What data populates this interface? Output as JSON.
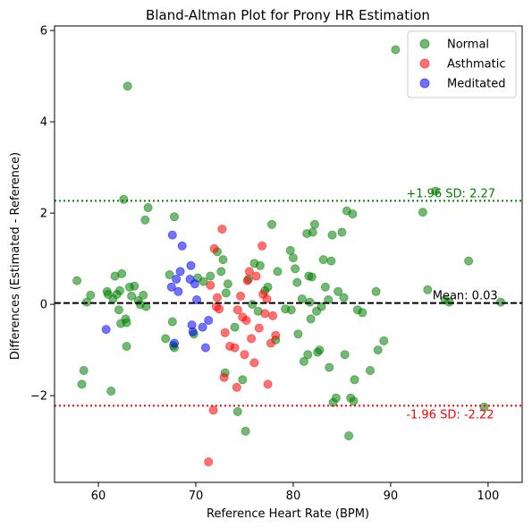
{
  "chart_data": {
    "type": "scatter",
    "title": "Bland-Altman Plot for Prony HR Estimation",
    "xlabel": "Reference Heart Rate (BPM)",
    "ylabel": "Differences (Estimated - Reference)",
    "xlim": [
      55.5,
      103.5
    ],
    "ylim": [
      -3.9,
      6.1
    ],
    "xticks": [
      60,
      70,
      80,
      90,
      100
    ],
    "yticks": [
      -2,
      0,
      2,
      4,
      6
    ],
    "xtick_labels": [
      "60",
      "70",
      "80",
      "90",
      "100"
    ],
    "ytick_labels": [
      "−2",
      "0",
      "2",
      "4",
      "6"
    ],
    "grid": false,
    "legend_position": "top-right",
    "series": [
      {
        "name": "Normal",
        "color": "#008000",
        "alpha": 0.55,
        "points": [
          [
            57.8,
            0.52
          ],
          [
            58.3,
            -1.75
          ],
          [
            58.5,
            -1.45
          ],
          [
            58.8,
            0.05
          ],
          [
            59.2,
            0.2
          ],
          [
            60.9,
            0.28
          ],
          [
            61.0,
            0.22
          ],
          [
            61.3,
            -1.9
          ],
          [
            61.5,
            0.12
          ],
          [
            61.7,
            0.62
          ],
          [
            61.9,
            0.22
          ],
          [
            62.1,
            -0.12
          ],
          [
            62.2,
            0.3
          ],
          [
            62.3,
            -0.42
          ],
          [
            62.4,
            0.67
          ],
          [
            62.6,
            2.3
          ],
          [
            62.8,
            -0.32
          ],
          [
            62.9,
            -0.4
          ],
          [
            62.9,
            -0.92
          ],
          [
            63.0,
            4.78
          ],
          [
            63.2,
            0.38
          ],
          [
            63.4,
            0.18
          ],
          [
            63.7,
            0.4
          ],
          [
            64.1,
            0.08
          ],
          [
            64.3,
            0.0
          ],
          [
            64.6,
            0.2
          ],
          [
            64.8,
            1.85
          ],
          [
            64.9,
            -0.05
          ],
          [
            65.1,
            2.12
          ],
          [
            66.9,
            -0.75
          ],
          [
            67.3,
            0.65
          ],
          [
            67.6,
            -0.38
          ],
          [
            67.7,
            -0.9
          ],
          [
            67.8,
            -0.95
          ],
          [
            67.8,
            1.92
          ],
          [
            69.8,
            -0.65
          ],
          [
            70.2,
            0.58
          ],
          [
            70.8,
            0.5
          ],
          [
            71.5,
            0.62
          ],
          [
            72.2,
            1.15
          ],
          [
            72.6,
            0.72
          ],
          [
            72.8,
            0.98
          ],
          [
            73.0,
            -1.5
          ],
          [
            73.1,
            0.25
          ],
          [
            73.3,
            0.45
          ],
          [
            74.0,
            -0.5
          ],
          [
            74.3,
            -2.35
          ],
          [
            74.8,
            -1.65
          ],
          [
            75.1,
            -2.78
          ],
          [
            75.4,
            0.55
          ],
          [
            75.8,
            0.0
          ],
          [
            76.0,
            0.9
          ],
          [
            76.4,
            -0.15
          ],
          [
            76.6,
            0.85
          ],
          [
            77.1,
            0.3
          ],
          [
            77.4,
            0.38
          ],
          [
            77.8,
            1.75
          ],
          [
            78.2,
            -0.78
          ],
          [
            78.4,
            0.72
          ],
          [
            79.2,
            -0.1
          ],
          [
            79.7,
            1.18
          ],
          [
            79.8,
            -0.12
          ],
          [
            80.0,
            1.02
          ],
          [
            80.2,
            0.78
          ],
          [
            80.4,
            0.48
          ],
          [
            80.5,
            -0.65
          ],
          [
            80.9,
            0.12
          ],
          [
            81.1,
            -1.25
          ],
          [
            81.4,
            1.55
          ],
          [
            81.5,
            -1.1
          ],
          [
            81.6,
            0.62
          ],
          [
            81.7,
            0.05
          ],
          [
            81.8,
            -0.32
          ],
          [
            81.9,
            0.6
          ],
          [
            82.0,
            1.58
          ],
          [
            82.2,
            1.75
          ],
          [
            82.4,
            -0.15
          ],
          [
            82.5,
            -1.05
          ],
          [
            82.7,
            -1.0
          ],
          [
            82.9,
            -0.05
          ],
          [
            83.1,
            0.98
          ],
          [
            83.3,
            0.38
          ],
          [
            83.6,
            0.1
          ],
          [
            83.7,
            -1.38
          ],
          [
            83.9,
            0.95
          ],
          [
            84.0,
            1.52
          ],
          [
            84.1,
            -2.15
          ],
          [
            84.4,
            -2.05
          ],
          [
            84.6,
            0.28
          ],
          [
            85.0,
            1.58
          ],
          [
            85.2,
            0.15
          ],
          [
            85.3,
            -1.1
          ],
          [
            85.5,
            2.05
          ],
          [
            85.7,
            -2.88
          ],
          [
            85.9,
            -2.05
          ],
          [
            86.1,
            1.98
          ],
          [
            86.2,
            -2.12
          ],
          [
            86.3,
            -1.65
          ],
          [
            86.6,
            -0.12
          ],
          [
            87.1,
            -0.18
          ],
          [
            87.9,
            -1.45
          ],
          [
            88.5,
            0.28
          ],
          [
            88.7,
            -1.0
          ],
          [
            89.3,
            -0.8
          ],
          [
            90.5,
            5.58
          ],
          [
            93.3,
            2.02
          ],
          [
            93.8,
            0.32
          ],
          [
            94.6,
            2.48
          ],
          [
            95.6,
            0.1
          ],
          [
            96.0,
            0.05
          ],
          [
            98.0,
            0.95
          ],
          [
            99.6,
            -2.25
          ],
          [
            101.3,
            0.05
          ]
        ]
      },
      {
        "name": "Asthmatic",
        "color": "#ff0000",
        "alpha": 0.55,
        "points": [
          [
            71.3,
            -3.45
          ],
          [
            71.5,
            0.42
          ],
          [
            71.8,
            -2.32
          ],
          [
            71.9,
            1.22
          ],
          [
            72.1,
            -0.05
          ],
          [
            72.2,
            0.15
          ],
          [
            72.4,
            -0.1
          ],
          [
            72.7,
            1.65
          ],
          [
            72.9,
            -1.6
          ],
          [
            73.0,
            -0.62
          ],
          [
            73.5,
            -0.92
          ],
          [
            74.0,
            -0.95
          ],
          [
            74.2,
            -1.82
          ],
          [
            74.3,
            -0.12
          ],
          [
            74.6,
            0.18
          ],
          [
            74.8,
            -0.28
          ],
          [
            75.0,
            -1.1
          ],
          [
            75.2,
            -0.35
          ],
          [
            75.3,
            0.52
          ],
          [
            75.5,
            0.72
          ],
          [
            75.7,
            -0.75
          ],
          [
            76.0,
            -1.28
          ],
          [
            76.2,
            0.62
          ],
          [
            76.5,
            -0.52
          ],
          [
            76.8,
            1.28
          ],
          [
            76.9,
            0.22
          ],
          [
            77.1,
            -0.2
          ],
          [
            77.3,
            0.12
          ],
          [
            77.4,
            -1.75
          ],
          [
            77.7,
            -0.85
          ],
          [
            77.9,
            -0.25
          ],
          [
            78.2,
            -0.68
          ]
        ]
      },
      {
        "name": "Meditated",
        "color": "#0000ff",
        "alpha": 0.55,
        "points": [
          [
            60.8,
            -0.55
          ],
          [
            67.5,
            0.38
          ],
          [
            67.6,
            1.52
          ],
          [
            67.8,
            -0.85
          ],
          [
            68.0,
            0.55
          ],
          [
            68.2,
            0.28
          ],
          [
            68.4,
            0.72
          ],
          [
            68.6,
            1.28
          ],
          [
            69.4,
            0.55
          ],
          [
            69.5,
            0.85
          ],
          [
            69.6,
            -0.45
          ],
          [
            69.7,
            -0.6
          ],
          [
            69.9,
            0.45
          ],
          [
            70.1,
            0.1
          ],
          [
            70.7,
            -0.5
          ],
          [
            71.0,
            -0.95
          ],
          [
            71.3,
            -0.35
          ]
        ]
      }
    ],
    "reference_lines": [
      {
        "label": "Mean: 0.03",
        "value": 0.03,
        "color": "#000000",
        "style": "dashed"
      },
      {
        "label": "+1.96 SD: 2.27",
        "value": 2.27,
        "color": "#008000",
        "style": "dotted"
      },
      {
        "label": "-1.96 SD: -2.22",
        "value": -2.22,
        "color": "#ff0000",
        "style": "dotted"
      }
    ]
  }
}
